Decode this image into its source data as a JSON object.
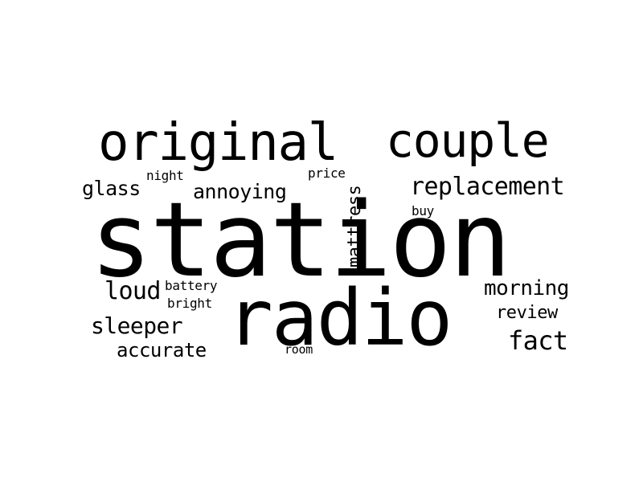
{
  "word_cloud": {
    "background_color": "#ffffff",
    "text_color": "#000000",
    "words": {
      "station": "station",
      "radio": "radio",
      "original": "original",
      "couple": "couple",
      "replacement": "replacement",
      "annoying": "annoying",
      "glass": "glass",
      "night": "night",
      "price": "price",
      "buy": "buy",
      "mattress": "mattress",
      "loud": "loud",
      "battery": "battery",
      "bright": "bright",
      "sleeper": "sleeper",
      "accurate": "accurate",
      "room": "room",
      "morning": "morning",
      "review": "review",
      "fact": "fact"
    }
  }
}
